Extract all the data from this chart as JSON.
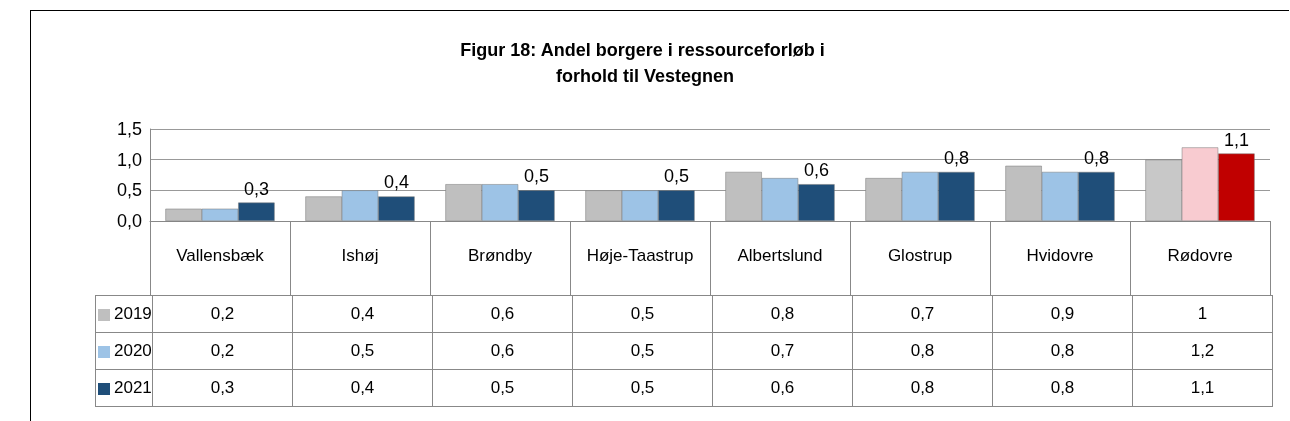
{
  "chart_data": {
    "type": "bar",
    "title": "Figur 18: Andel borgere i ressourceforløb i forhold til Vestegnen",
    "categories": [
      "Vallensbæk",
      "Ishøj",
      "Brøndby",
      "Høje-Taastrup",
      "Albertslund",
      "Glostrup",
      "Hvidovre",
      "Rødovre"
    ],
    "series": [
      {
        "name": "2019",
        "color": "#bfbfbf",
        "colors": [
          "#bfbfbf",
          "#bfbfbf",
          "#bfbfbf",
          "#bfbfbf",
          "#bfbfbf",
          "#bfbfbf",
          "#bfbfbf",
          "#c8c8c8"
        ],
        "values": [
          0.2,
          0.4,
          0.6,
          0.5,
          0.8,
          0.7,
          0.9,
          1
        ],
        "value_labels": [
          "0,2",
          "0,4",
          "0,6",
          "0,5",
          "0,8",
          "0,7",
          "0,9",
          "1"
        ]
      },
      {
        "name": "2020",
        "color": "#9dc3e6",
        "colors": [
          "#9dc3e6",
          "#9dc3e6",
          "#9dc3e6",
          "#9dc3e6",
          "#9dc3e6",
          "#9dc3e6",
          "#9dc3e6",
          "#f8cbd0"
        ],
        "values": [
          0.2,
          0.5,
          0.6,
          0.5,
          0.7,
          0.8,
          0.8,
          1.2
        ],
        "value_labels": [
          "0,2",
          "0,5",
          "0,6",
          "0,5",
          "0,7",
          "0,8",
          "0,8",
          "1,2"
        ]
      },
      {
        "name": "2021",
        "color": "#1f4e79",
        "colors": [
          "#1f4e79",
          "#1f4e79",
          "#1f4e79",
          "#1f4e79",
          "#1f4e79",
          "#1f4e79",
          "#1f4e79",
          "#c00000"
        ],
        "values": [
          0.3,
          0.4,
          0.5,
          0.5,
          0.6,
          0.8,
          0.8,
          1.1
        ],
        "value_labels": [
          "0,3",
          "0,4",
          "0,5",
          "0,5",
          "0,6",
          "0,8",
          "0,8",
          "1,1"
        ],
        "data_labels": true
      }
    ],
    "ylim": [
      0,
      1.5
    ],
    "yticks": [
      {
        "value": 0,
        "label": "0,0"
      },
      {
        "value": 0.5,
        "label": "0,5"
      },
      {
        "value": 1,
        "label": "1,0"
      },
      {
        "value": 1.5,
        "label": "1,5"
      }
    ],
    "grid": "y",
    "legend": "bottom left"
  }
}
